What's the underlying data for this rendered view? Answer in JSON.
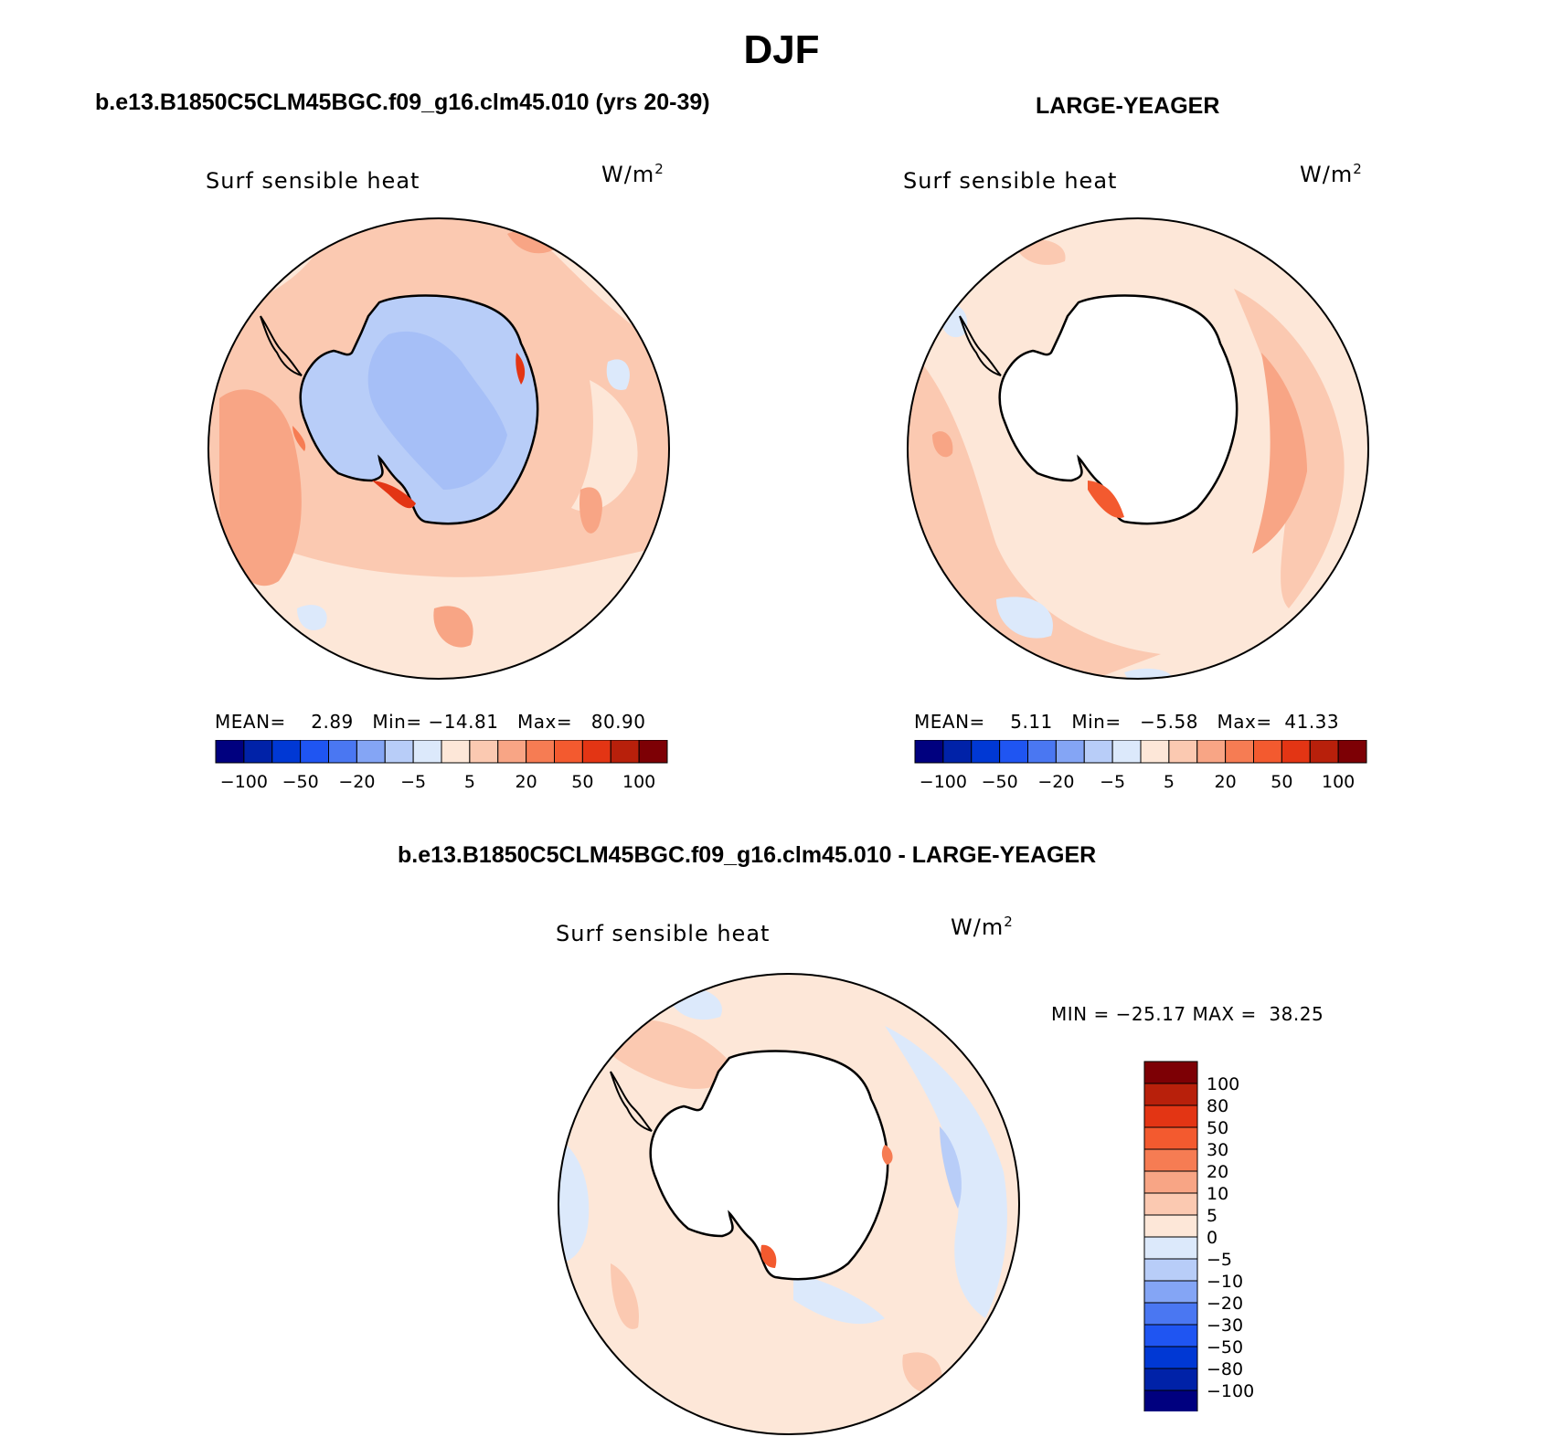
{
  "figure": {
    "title": "DJF"
  },
  "colors": {
    "scale": [
      "#00007f",
      "#0022a8",
      "#0038d4",
      "#1f55f2",
      "#4a77f2",
      "#84a5f5",
      "#b8cdf8",
      "#dce9fb",
      "#fde7d8",
      "#fbc9b1",
      "#f8a585",
      "#f67c53",
      "#f35a2f",
      "#e33514",
      "#b8200b",
      "#7d0005"
    ],
    "coast": "#000000",
    "land_white": "#ffffff"
  },
  "panels": [
    {
      "title": "b.e13.B1850C5CLM45BGC.f09_g16.clm45.010 (yrs 20-39)",
      "variable": "Surf sensible heat",
      "units_base": "W/m",
      "units_exp": "2",
      "stats": {
        "mean_label": "MEAN=",
        "mean": "2.89",
        "min_label": "Min=",
        "min": "−14.81",
        "max_label": "Max=",
        "max": "80.90"
      },
      "colorbar_labels": [
        "−100",
        "−50",
        "−20",
        "−5",
        "5",
        "20",
        "50",
        "100"
      ]
    },
    {
      "title": "LARGE-YEAGER",
      "variable": "Surf sensible heat",
      "units_base": "W/m",
      "units_exp": "2",
      "stats": {
        "mean_label": "MEAN=",
        "mean": "5.11",
        "min_label": "Min=",
        "min": "−5.58",
        "max_label": "Max=",
        "max": "41.33"
      },
      "colorbar_labels": [
        "−100",
        "−50",
        "−20",
        "−5",
        "5",
        "20",
        "50",
        "100"
      ]
    },
    {
      "title": "b.e13.B1850C5CLM45BGC.f09_g16.clm45.010 - LARGE-YEAGER",
      "variable": "Surf sensible heat",
      "units_base": "W/m",
      "units_exp": "2",
      "minmax": "MIN = −25.17 MAX =  38.25",
      "colorbar_labels": [
        "100",
        "80",
        "50",
        "30",
        "20",
        "10",
        "5",
        "0",
        "−5",
        "−10",
        "−20",
        "−30",
        "−50",
        "−80",
        "−100"
      ]
    }
  ]
}
